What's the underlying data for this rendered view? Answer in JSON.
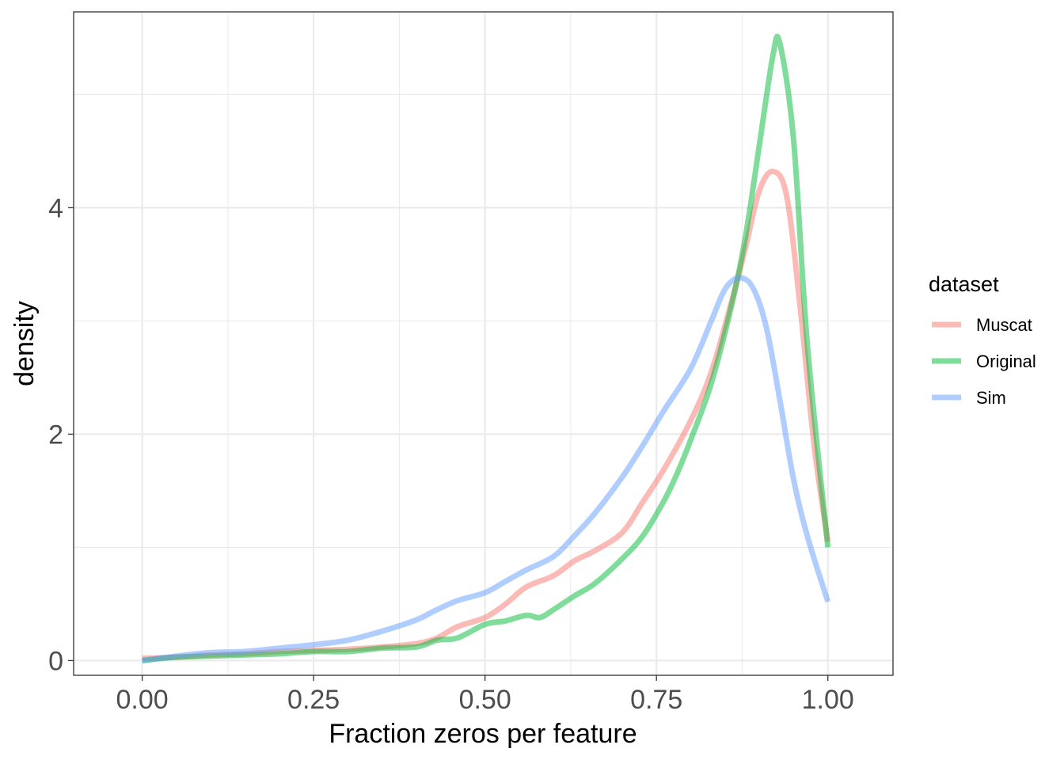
{
  "chart_data": {
    "type": "line",
    "title": "",
    "xlabel": "Fraction zeros per feature",
    "ylabel": "density",
    "xlim": [
      -0.1,
      2.1
    ],
    "ylim": [
      -0.13,
      5.73
    ],
    "xlim_display": [
      -0.1,
      1.095
    ],
    "x_ticks": [
      0,
      0.25,
      0.5,
      0.75,
      1
    ],
    "x_tick_labels": [
      "0.00",
      "0.25",
      "0.50",
      "0.75",
      "1.00"
    ],
    "y_ticks": [
      0,
      2,
      4
    ],
    "y_tick_labels": [
      "0",
      "2",
      "4"
    ],
    "grid": true,
    "legend_position": "right",
    "legend_title": "dataset",
    "series": [
      {
        "name": "Muscat",
        "color": "#F8766D",
        "x": [
          0,
          0.05,
          0.1,
          0.15,
          0.2,
          0.25,
          0.3,
          0.35,
          0.4,
          0.43,
          0.46,
          0.5,
          0.53,
          0.56,
          0.6,
          0.63,
          0.66,
          0.7,
          0.73,
          0.76,
          0.8,
          0.83,
          0.86,
          0.88,
          0.9,
          0.92,
          0.94,
          0.96,
          0.98,
          1.0
        ],
        "values": [
          0.02,
          0.03,
          0.05,
          0.06,
          0.08,
          0.09,
          0.1,
          0.12,
          0.15,
          0.2,
          0.3,
          0.38,
          0.5,
          0.65,
          0.75,
          0.88,
          0.97,
          1.13,
          1.4,
          1.68,
          2.12,
          2.55,
          3.18,
          3.65,
          4.15,
          4.32,
          4.1,
          3.1,
          1.9,
          1.05
        ]
      },
      {
        "name": "Original",
        "color": "#00BA38",
        "x": [
          0,
          0.05,
          0.1,
          0.15,
          0.2,
          0.25,
          0.3,
          0.35,
          0.4,
          0.43,
          0.46,
          0.5,
          0.53,
          0.56,
          0.58,
          0.6,
          0.63,
          0.66,
          0.7,
          0.73,
          0.76,
          0.78,
          0.8,
          0.83,
          0.86,
          0.88,
          0.9,
          0.92,
          0.93,
          0.95,
          0.97,
          1.0
        ],
        "values": [
          0.0,
          0.03,
          0.04,
          0.05,
          0.06,
          0.08,
          0.08,
          0.11,
          0.12,
          0.18,
          0.2,
          0.32,
          0.35,
          0.4,
          0.38,
          0.45,
          0.57,
          0.68,
          0.9,
          1.1,
          1.4,
          1.65,
          1.95,
          2.45,
          3.15,
          3.75,
          4.55,
          5.35,
          5.45,
          4.6,
          2.8,
          1.0
        ]
      },
      {
        "name": "Sim",
        "color": "#619CFF",
        "x": [
          0,
          0.05,
          0.1,
          0.15,
          0.2,
          0.25,
          0.3,
          0.35,
          0.4,
          0.43,
          0.46,
          0.5,
          0.53,
          0.56,
          0.6,
          0.63,
          0.66,
          0.7,
          0.73,
          0.76,
          0.8,
          0.83,
          0.85,
          0.87,
          0.89,
          0.91,
          0.93,
          0.95,
          0.97,
          1.0
        ],
        "values": [
          0.0,
          0.04,
          0.07,
          0.08,
          0.11,
          0.14,
          0.18,
          0.26,
          0.36,
          0.45,
          0.53,
          0.6,
          0.7,
          0.8,
          0.92,
          1.1,
          1.3,
          1.62,
          1.9,
          2.2,
          2.58,
          3.0,
          3.28,
          3.38,
          3.3,
          2.95,
          2.3,
          1.6,
          1.1,
          0.52
        ]
      }
    ]
  }
}
